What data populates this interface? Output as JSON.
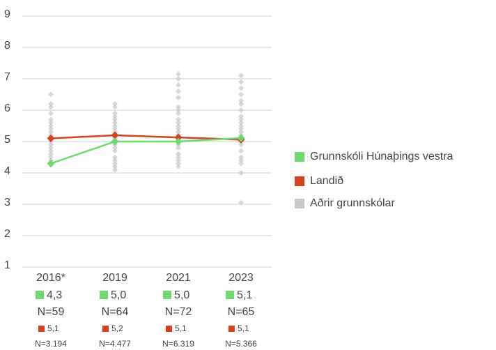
{
  "chart_data": {
    "type": "line",
    "categories": [
      "2016*",
      "2019",
      "2021",
      "2023"
    ],
    "ylim": [
      1,
      9
    ],
    "yticks": [
      1,
      2,
      3,
      4,
      5,
      6,
      7,
      8,
      9
    ],
    "grid": true,
    "legend": "right",
    "series": [
      {
        "name": "Grunnskóli Húnaþings vestra",
        "color": "#6ddc6d",
        "values": [
          4.3,
          5.0,
          5.0,
          5.11
        ],
        "value_labels": [
          "4,3",
          "5,0",
          "5,0",
          "5,1"
        ],
        "n_labels": [
          "N=59",
          "N=64",
          "N=72",
          "N=65"
        ]
      },
      {
        "name": "Landið",
        "color": "#d9411e",
        "values": [
          5.1,
          5.2,
          5.13,
          5.06
        ],
        "value_labels": [
          "5,1",
          "5,2",
          "5,1",
          "5,1"
        ],
        "n_labels": [
          "N=3.194",
          "N=4.477",
          "N=6.319",
          "N=5.366"
        ]
      },
      {
        "name": "Aðrir grunnskólar",
        "color": "#c8c8c8",
        "values": [
          [
            6.5,
            6.2,
            6.1,
            5.9,
            5.7,
            5.6,
            5.5,
            5.4,
            5.3,
            5.2,
            5.0,
            4.9,
            4.8,
            4.7,
            4.6,
            4.5,
            4.4,
            4.3,
            4.25
          ],
          [
            6.2,
            6.1,
            5.9,
            5.8,
            5.7,
            5.6,
            5.5,
            5.4,
            5.3,
            5.1,
            4.9,
            4.8,
            4.7,
            4.5,
            4.4,
            4.3,
            4.2,
            4.1
          ],
          [
            7.15,
            7.0,
            6.8,
            6.6,
            6.4,
            6.1,
            6.0,
            5.9,
            5.7,
            5.6,
            5.5,
            5.4,
            5.3,
            5.2,
            5.0,
            4.9,
            4.8,
            4.6,
            4.5,
            4.4,
            4.3,
            4.2
          ],
          [
            7.1,
            6.9,
            6.7,
            6.5,
            6.3,
            6.2,
            6.0,
            5.8,
            5.7,
            5.6,
            5.5,
            5.4,
            5.3,
            5.2,
            5.0,
            4.9,
            4.7,
            4.5,
            4.4,
            4.3,
            4.0,
            3.05
          ]
        ]
      }
    ]
  }
}
